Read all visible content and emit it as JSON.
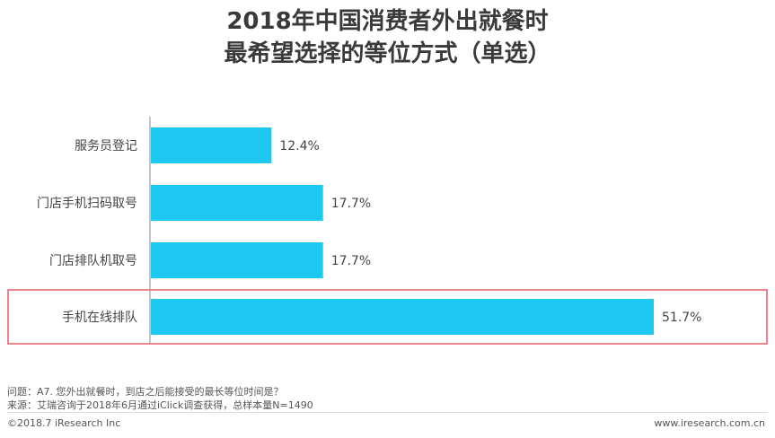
{
  "title_lines": [
    "2018年中国消费者外出就餐时",
    "最希望选择的等位方式（单选）"
  ],
  "chart_data": {
    "type": "bar",
    "orientation": "horizontal",
    "categories": [
      "服务员登记",
      "门店手机扫码取号",
      "门店排队机取号",
      "手机在线排队"
    ],
    "values": [
      12.4,
      17.7,
      17.7,
      51.7
    ],
    "value_labels": [
      "12.4%",
      "17.7%",
      "17.7%",
      "51.7%"
    ],
    "unit": "%",
    "highlighted_category": "手机在线排队",
    "bar_color": "#1ec8f0",
    "highlight_color": "#e8858e",
    "grid": false
  },
  "notes": {
    "question": "问题：A7. 您外出就餐时，到店之后能接受的最长等位时间是？",
    "source": "来源：艾瑞咨询于2018年6月通过iClick调查获得，总样本量N=1490"
  },
  "footer": {
    "copyright": "©2018.7 iResearch  Inc",
    "website": "www.iresearch.com.cn"
  }
}
